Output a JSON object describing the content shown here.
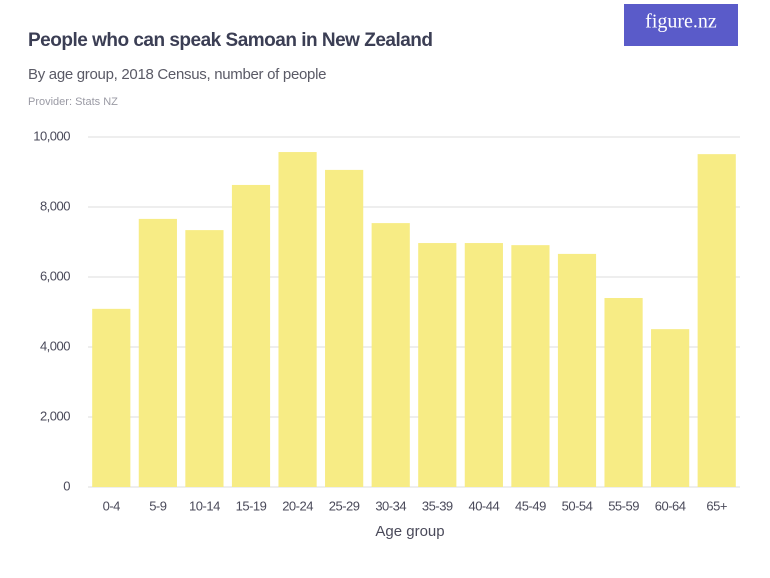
{
  "logo": "figure.nz",
  "chart_data": {
    "type": "bar",
    "title": "People who can speak Samoan in New Zealand",
    "subtitle": "By age group, 2018 Census, number of people",
    "provider": "Provider: Stats NZ",
    "x_label": "Age group",
    "categories": [
      "0-4",
      "5-9",
      "10-14",
      "15-19",
      "20-24",
      "25-29",
      "30-34",
      "35-39",
      "40-44",
      "45-49",
      "50-54",
      "55-59",
      "60-64",
      "65+"
    ],
    "values": [
      5090,
      7660,
      7340,
      8630,
      9570,
      9060,
      7540,
      6970,
      6970,
      6910,
      6660,
      5400,
      4510,
      9510
    ],
    "color": "#f7ec85",
    "ylim": [
      0,
      10000
    ],
    "yticks": [
      0,
      {
        "value": 2000,
        "label": "2,000"
      },
      {
        "value": 4000,
        "label": "4,000"
      },
      {
        "value": 6000,
        "label": "6,000"
      },
      {
        "value": 8000,
        "label": "8,000"
      },
      {
        "value": 10000,
        "label": "10,000"
      }
    ],
    "grid": true
  }
}
